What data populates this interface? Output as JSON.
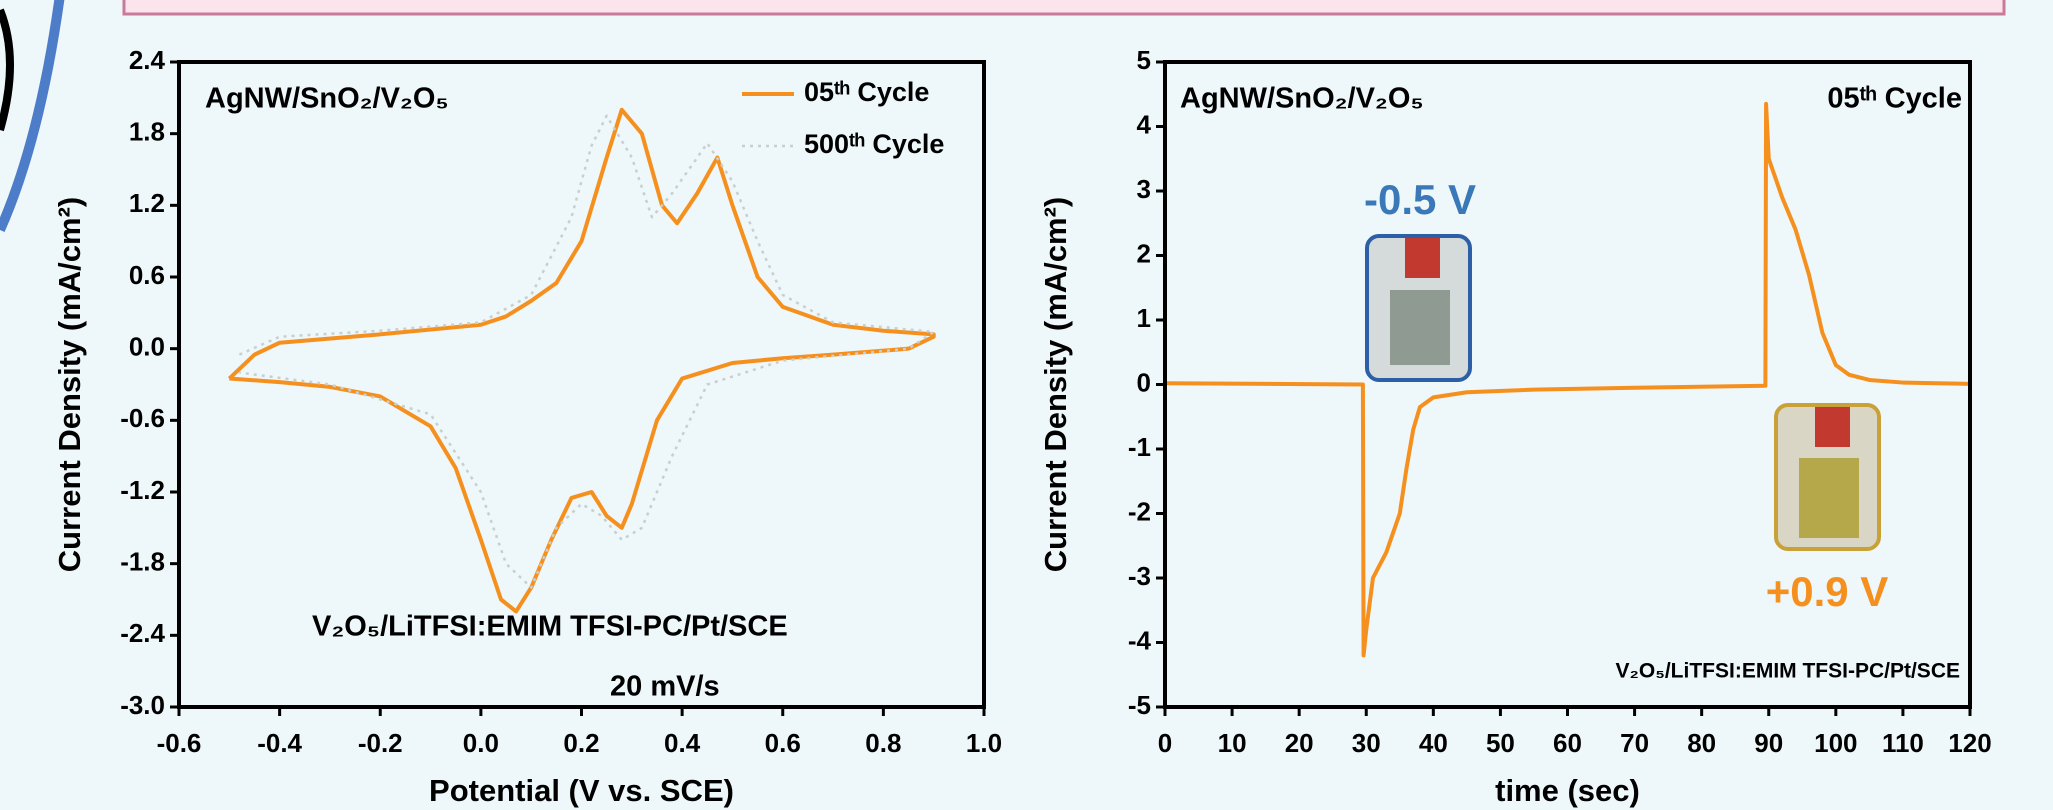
{
  "chart_data": [
    {
      "type": "line",
      "x_label": "Potential (V vs. SCE)",
      "y_label": "Current Density (mA/cm²)",
      "annotations": [
        "AgNW/SnO₂/V₂O₅",
        "V₂O₅/LiTFSI:EMIM TFSI-PC/Pt/SCE",
        "20 mV/s"
      ],
      "xlim": [
        -0.6,
        1.0
      ],
      "xticks": [
        -0.6,
        -0.4,
        -0.2,
        {
          "value": 0,
          "label": "0.0"
        },
        0.2,
        0.4,
        0.6,
        0.8,
        {
          "value": 1,
          "label": "1.0"
        }
      ],
      "ylim": [
        -3.0,
        2.4
      ],
      "yticks": [
        {
          "value": -3,
          "label": "-3.0"
        },
        -2.4,
        -1.8,
        -1.2,
        -0.6,
        {
          "value": 0,
          "label": "0.0"
        },
        0.6,
        1.2,
        1.8,
        2.4
      ],
      "legend": "upper right",
      "series": [
        {
          "name": "05ᵗʰ Cycle",
          "color": "#f5901e",
          "style": "solid",
          "x": [
            -0.5,
            -0.45,
            -0.4,
            -0.2,
            0.0,
            0.05,
            0.1,
            0.15,
            0.2,
            0.25,
            0.28,
            0.32,
            0.36,
            0.39,
            0.43,
            0.47,
            0.5,
            0.55,
            0.6,
            0.7,
            0.8,
            0.9,
            0.9,
            0.85,
            0.7,
            0.6,
            0.5,
            0.4,
            0.35,
            0.3,
            0.28,
            0.25,
            0.22,
            0.18,
            0.14,
            0.1,
            0.07,
            0.04,
            0.0,
            -0.05,
            -0.1,
            -0.2,
            -0.3,
            -0.4,
            -0.5
          ],
          "values": [
            -0.25,
            -0.05,
            0.05,
            0.12,
            0.2,
            0.27,
            0.4,
            0.55,
            0.9,
            1.6,
            2.0,
            1.8,
            1.2,
            1.05,
            1.3,
            1.6,
            1.2,
            0.6,
            0.35,
            0.2,
            0.15,
            0.12,
            0.1,
            0.0,
            -0.05,
            -0.08,
            -0.12,
            -0.25,
            -0.6,
            -1.3,
            -1.5,
            -1.4,
            -1.2,
            -1.25,
            -1.6,
            -2.0,
            -2.2,
            -2.1,
            -1.6,
            -1.0,
            -0.65,
            -0.4,
            -0.32,
            -0.28,
            -0.25
          ]
        },
        {
          "name": "500ᵗʰ Cycle",
          "color": "#c8cfcf",
          "style": "dotted",
          "x": [
            -0.48,
            -0.4,
            -0.2,
            0.0,
            0.1,
            0.18,
            0.22,
            0.25,
            0.3,
            0.34,
            0.38,
            0.45,
            0.5,
            0.55,
            0.6,
            0.7,
            0.9,
            0.85,
            0.6,
            0.45,
            0.38,
            0.32,
            0.28,
            0.24,
            0.2,
            0.15,
            0.1,
            0.05,
            0.0,
            -0.1,
            -0.3,
            -0.48
          ],
          "values": [
            -0.05,
            0.1,
            0.15,
            0.22,
            0.45,
            1.1,
            1.7,
            1.95,
            1.6,
            1.1,
            1.3,
            1.72,
            1.4,
            0.9,
            0.45,
            0.22,
            0.14,
            0.0,
            -0.1,
            -0.3,
            -0.9,
            -1.5,
            -1.6,
            -1.4,
            -1.3,
            -1.5,
            -2.0,
            -1.8,
            -1.2,
            -0.55,
            -0.3,
            -0.2
          ]
        }
      ]
    },
    {
      "type": "line",
      "x_label": "time (sec)",
      "y_label": "Current Density (mA/cm²)",
      "annotations": [
        "AgNW/SnO₂/V₂O₅",
        "05ᵗʰ Cycle",
        "-0.5 V",
        "+0.9 V",
        "V₂O₅/LiTFSI:EMIM TFSI-PC/Pt/SCE"
      ],
      "xlim": [
        0,
        120
      ],
      "xticks": [
        0,
        10,
        20,
        30,
        40,
        50,
        60,
        70,
        80,
        90,
        100,
        110,
        120
      ],
      "ylim": [
        -5,
        5
      ],
      "yticks": [
        -5,
        -4,
        -3,
        -2,
        -1,
        0,
        1,
        2,
        3,
        4,
        5
      ],
      "series": [
        {
          "color": "#f5901e",
          "style": "solid",
          "x": [
            0,
            29.5,
            29.6,
            30,
            31,
            33,
            35,
            36,
            37,
            38,
            40,
            45,
            55,
            70,
            89.5,
            89.6,
            90,
            92,
            94,
            96,
            98,
            100,
            102,
            105,
            110,
            120
          ],
          "values": [
            0.02,
            0.0,
            -4.2,
            -3.8,
            -3.0,
            -2.6,
            -2.0,
            -1.3,
            -0.7,
            -0.35,
            -0.2,
            -0.12,
            -0.08,
            -0.05,
            -0.02,
            4.35,
            3.5,
            2.9,
            2.4,
            1.7,
            0.8,
            0.3,
            0.15,
            0.07,
            0.03,
            0.01
          ]
        }
      ]
    }
  ]
}
